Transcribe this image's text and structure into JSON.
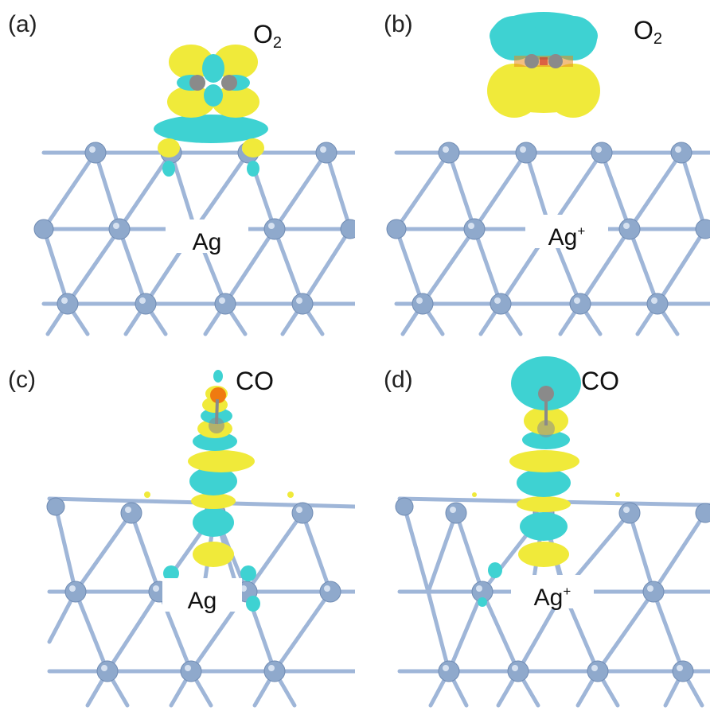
{
  "panels": [
    {
      "id": "a",
      "label": "(a)",
      "molecule": "O",
      "molecule_sub": "2",
      "surface": "Ag",
      "surface_sup": ""
    },
    {
      "id": "b",
      "label": "(b)",
      "molecule": "O",
      "molecule_sub": "2",
      "surface": "Ag",
      "surface_sup": "+"
    },
    {
      "id": "c",
      "label": "(c)",
      "molecule": "CO",
      "molecule_sub": "",
      "surface": "Ag",
      "surface_sup": ""
    },
    {
      "id": "d",
      "label": "(d)",
      "molecule": "CO",
      "molecule_sub": "",
      "surface": "Ag",
      "surface_sup": "+"
    }
  ],
  "colors": {
    "lattice": "#9fb6d8",
    "atom": "#8fa9cc",
    "atom_highlight": "#e8f0fa",
    "yellow_lobe": "#f0ea3a",
    "cyan_lobe": "#3ed2d2",
    "carbon": "#8a8a8a",
    "oxygen_cap": "#f07a10"
  }
}
